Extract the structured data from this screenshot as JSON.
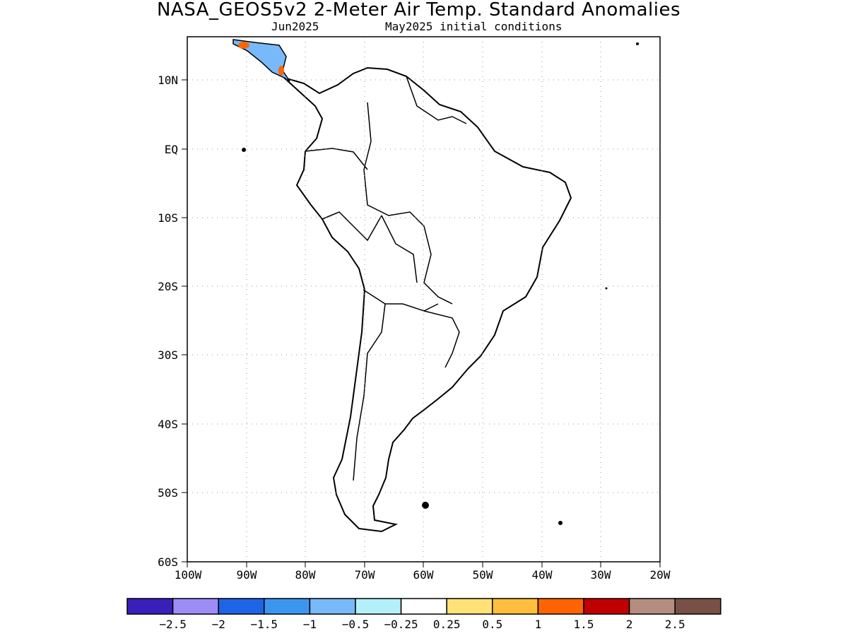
{
  "header": {
    "title": "NASA_GEOS5v2 2-Meter Air Temp. Standard Anomalies",
    "target_month": "Jun2025",
    "initial_conditions": "May2025 initial conditions"
  },
  "map": {
    "region": "South America",
    "lat_labels": [
      "10N",
      "EQ",
      "10S",
      "20S",
      "30S",
      "40S",
      "50S",
      "60S"
    ],
    "lon_labels": [
      "100W",
      "90W",
      "80W",
      "70W",
      "60W",
      "50W",
      "40W",
      "30W",
      "20W"
    ],
    "colors": {
      "land_default": "#ffffff",
      "coastline": "#000000",
      "frame": "#000000",
      "grid": "#999999"
    }
  },
  "legend": {
    "bins": [
      {
        "color": "#3a1fbd"
      },
      {
        "color": "#9c8cf5"
      },
      {
        "color": "#1f64e6"
      },
      {
        "color": "#3c96f0"
      },
      {
        "color": "#78b9fa"
      },
      {
        "color": "#b4f0fa"
      },
      {
        "color": "#ffffff"
      },
      {
        "color": "#ffe178"
      },
      {
        "color": "#ffbe3c"
      },
      {
        "color": "#ff6400"
      },
      {
        "color": "#c00000"
      },
      {
        "color": "#b48c80"
      },
      {
        "color": "#785046"
      }
    ],
    "tick_labels": [
      "-2.5",
      "-2",
      "-1.5",
      "-1",
      "-0.5",
      "-0.25",
      "0.25",
      "0.5",
      "1",
      "1.5",
      "2",
      "2.5"
    ]
  }
}
